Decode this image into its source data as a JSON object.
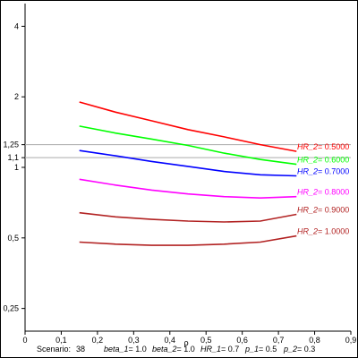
{
  "chart_data": {
    "type": "line",
    "xlabel": "ρ",
    "ylabel": "",
    "xlim": [
      0,
      0.9
    ],
    "ylim": [
      0.2,
      5
    ],
    "y_scale": "log",
    "x_ticks": [
      "0",
      "0,1",
      "0,2",
      "0,3",
      "0,4",
      "0,5",
      "0,6",
      "0,7",
      "0,8",
      "0,9"
    ],
    "x_tick_values": [
      0,
      0.1,
      0.2,
      0.3,
      0.4,
      0.5,
      0.6,
      0.7,
      0.8,
      0.9
    ],
    "y_ticks": [
      "0,25",
      "0,5",
      "1",
      "1,1",
      "1,25",
      "2",
      "4"
    ],
    "y_tick_values": [
      0.25,
      0.5,
      1,
      1.1,
      1.25,
      2,
      4
    ],
    "reference_lines": [
      1.1,
      1.25
    ],
    "grid": false,
    "series": [
      {
        "name": "HR_2",
        "label_value": "= 0.5000",
        "color": "#ff0000",
        "x": [
          0.15,
          0.25,
          0.35,
          0.45,
          0.55,
          0.65,
          0.75
        ],
        "y": [
          1.9,
          1.72,
          1.58,
          1.45,
          1.35,
          1.25,
          1.17
        ]
      },
      {
        "name": "HR_2",
        "label_value": "= 0.6000",
        "color": "#00ff00",
        "x": [
          0.15,
          0.25,
          0.35,
          0.45,
          0.55,
          0.65,
          0.75
        ],
        "y": [
          1.5,
          1.4,
          1.32,
          1.24,
          1.15,
          1.08,
          1.03
        ]
      },
      {
        "name": "HR_2",
        "label_value": "= 0.7000",
        "color": "#0000ff",
        "x": [
          0.15,
          0.25,
          0.35,
          0.45,
          0.55,
          0.65,
          0.75
        ],
        "y": [
          1.18,
          1.12,
          1.06,
          1.01,
          0.96,
          0.93,
          0.92
        ]
      },
      {
        "name": "HR_2",
        "label_value": "= 0.8000",
        "color": "#ff00ff",
        "x": [
          0.15,
          0.25,
          0.35,
          0.45,
          0.55,
          0.65,
          0.75
        ],
        "y": [
          0.89,
          0.84,
          0.8,
          0.77,
          0.75,
          0.74,
          0.75
        ]
      },
      {
        "name": "HR_2",
        "label_value": "= 0.9000",
        "color": "#b22222",
        "x": [
          0.15,
          0.25,
          0.35,
          0.45,
          0.55,
          0.65,
          0.75
        ],
        "y": [
          0.64,
          0.615,
          0.6,
          0.59,
          0.585,
          0.59,
          0.63
        ]
      },
      {
        "name": "HR_2",
        "label_value": "= 1.0000",
        "color": "#b22222",
        "x": [
          0.15,
          0.25,
          0.35,
          0.45,
          0.55,
          0.65,
          0.75
        ],
        "y": [
          0.48,
          0.47,
          0.465,
          0.465,
          0.47,
          0.48,
          0.51
        ]
      }
    ]
  },
  "footer": {
    "scenario_label": "Scenario:",
    "scenario_value": "38",
    "params": [
      {
        "name": "beta_1",
        "value": "= 1.0"
      },
      {
        "name": "beta_2",
        "value": "= 1.0"
      },
      {
        "name": "HR_1",
        "value": "= 0.7"
      },
      {
        "name": "p_1",
        "value": "= 0.5"
      },
      {
        "name": "p_2",
        "value": "= 0.3"
      }
    ]
  }
}
